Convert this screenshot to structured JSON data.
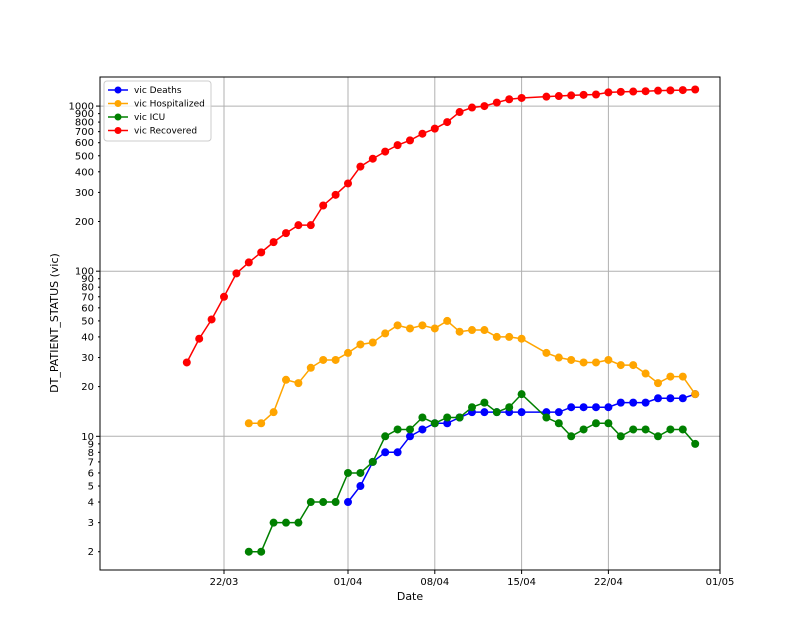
{
  "chart_data": {
    "type": "line",
    "title": "",
    "xlabel": "Date",
    "ylabel": "DT_PATIENT_STATUS (vic)",
    "y_scale": "log",
    "grid": true,
    "legend_position": "top-left",
    "xlim": [
      "2020-03-12",
      "2020-05-01"
    ],
    "ylim": [
      1.55,
      1500
    ],
    "x_ticks": [
      {
        "date": "2020-03-22",
        "label": "22/03"
      },
      {
        "date": "2020-04-01",
        "label": "01/04"
      },
      {
        "date": "2020-04-08",
        "label": "08/04"
      },
      {
        "date": "2020-04-15",
        "label": "15/04"
      },
      {
        "date": "2020-04-22",
        "label": "22/04"
      },
      {
        "date": "2020-05-01",
        "label": "01/05"
      }
    ],
    "y_ticks": [
      {
        "value": 2,
        "label": "2"
      },
      {
        "value": 3,
        "label": "3"
      },
      {
        "value": 4,
        "label": "4"
      },
      {
        "value": 5,
        "label": "5"
      },
      {
        "value": 6,
        "label": "6"
      },
      {
        "value": 7,
        "label": "7"
      },
      {
        "value": 8,
        "label": "8"
      },
      {
        "value": 9,
        "label": "9"
      },
      {
        "value": 10,
        "label": "10"
      },
      {
        "value": 20,
        "label": "20"
      },
      {
        "value": 30,
        "label": "30"
      },
      {
        "value": 40,
        "label": "40"
      },
      {
        "value": 50,
        "label": "50"
      },
      {
        "value": 60,
        "label": "60"
      },
      {
        "value": 70,
        "label": "70"
      },
      {
        "value": 80,
        "label": "80"
      },
      {
        "value": 90,
        "label": "90"
      },
      {
        "value": 100,
        "label": "100"
      },
      {
        "value": 200,
        "label": "200"
      },
      {
        "value": 300,
        "label": "300"
      },
      {
        "value": 400,
        "label": "400"
      },
      {
        "value": 500,
        "label": "500"
      },
      {
        "value": 600,
        "label": "600"
      },
      {
        "value": 700,
        "label": "700"
      },
      {
        "value": 800,
        "label": "800"
      },
      {
        "value": 900,
        "label": "900"
      },
      {
        "value": 1000,
        "label": "1000"
      }
    ],
    "x_gridlines": [
      "2020-03-22",
      "2020-04-01",
      "2020-04-08",
      "2020-04-15",
      "2020-04-22"
    ],
    "y_gridlines": [
      10,
      100,
      1000
    ],
    "series": [
      {
        "name": "vic Deaths",
        "color": "#0000ff",
        "points": [
          [
            "2020-04-01",
            4
          ],
          [
            "2020-04-02",
            5
          ],
          [
            "2020-04-03",
            7
          ],
          [
            "2020-04-04",
            8
          ],
          [
            "2020-04-05",
            8
          ],
          [
            "2020-04-06",
            10
          ],
          [
            "2020-04-07",
            11
          ],
          [
            "2020-04-08",
            12
          ],
          [
            "2020-04-09",
            12
          ],
          [
            "2020-04-10",
            13
          ],
          [
            "2020-04-11",
            14
          ],
          [
            "2020-04-12",
            14
          ],
          [
            "2020-04-13",
            14
          ],
          [
            "2020-04-14",
            14
          ],
          [
            "2020-04-15",
            14
          ],
          [
            "2020-04-17",
            14
          ],
          [
            "2020-04-18",
            14
          ],
          [
            "2020-04-19",
            15
          ],
          [
            "2020-04-20",
            15
          ],
          [
            "2020-04-21",
            15
          ],
          [
            "2020-04-22",
            15
          ],
          [
            "2020-04-23",
            16
          ],
          [
            "2020-04-24",
            16
          ],
          [
            "2020-04-25",
            16
          ],
          [
            "2020-04-26",
            17
          ],
          [
            "2020-04-27",
            17
          ],
          [
            "2020-04-28",
            17
          ],
          [
            "2020-04-29",
            18
          ]
        ]
      },
      {
        "name": "vic Hospitalized",
        "color": "#ffa500",
        "points": [
          [
            "2020-03-24",
            12
          ],
          [
            "2020-03-25",
            12
          ],
          [
            "2020-03-26",
            14
          ],
          [
            "2020-03-27",
            22
          ],
          [
            "2020-03-28",
            21
          ],
          [
            "2020-03-29",
            26
          ],
          [
            "2020-03-30",
            29
          ],
          [
            "2020-03-31",
            29
          ],
          [
            "2020-04-01",
            32
          ],
          [
            "2020-04-02",
            36
          ],
          [
            "2020-04-03",
            37
          ],
          [
            "2020-04-04",
            42
          ],
          [
            "2020-04-05",
            47
          ],
          [
            "2020-04-06",
            45
          ],
          [
            "2020-04-07",
            47
          ],
          [
            "2020-04-08",
            45
          ],
          [
            "2020-04-09",
            50
          ],
          [
            "2020-04-10",
            43
          ],
          [
            "2020-04-11",
            44
          ],
          [
            "2020-04-12",
            44
          ],
          [
            "2020-04-13",
            40
          ],
          [
            "2020-04-14",
            40
          ],
          [
            "2020-04-15",
            39
          ],
          [
            "2020-04-17",
            32
          ],
          [
            "2020-04-18",
            30
          ],
          [
            "2020-04-19",
            29
          ],
          [
            "2020-04-20",
            28
          ],
          [
            "2020-04-21",
            28
          ],
          [
            "2020-04-22",
            29
          ],
          [
            "2020-04-23",
            27
          ],
          [
            "2020-04-24",
            27
          ],
          [
            "2020-04-25",
            24
          ],
          [
            "2020-04-26",
            21
          ],
          [
            "2020-04-27",
            23
          ],
          [
            "2020-04-28",
            23
          ],
          [
            "2020-04-29",
            18
          ]
        ]
      },
      {
        "name": "vic ICU",
        "color": "#008000",
        "points": [
          [
            "2020-03-24",
            2
          ],
          [
            "2020-03-25",
            2
          ],
          [
            "2020-03-26",
            3
          ],
          [
            "2020-03-27",
            3
          ],
          [
            "2020-03-28",
            3
          ],
          [
            "2020-03-29",
            4
          ],
          [
            "2020-03-30",
            4
          ],
          [
            "2020-03-31",
            4
          ],
          [
            "2020-04-01",
            6
          ],
          [
            "2020-04-02",
            6
          ],
          [
            "2020-04-03",
            7
          ],
          [
            "2020-04-04",
            10
          ],
          [
            "2020-04-05",
            11
          ],
          [
            "2020-04-06",
            11
          ],
          [
            "2020-04-07",
            13
          ],
          [
            "2020-04-08",
            12
          ],
          [
            "2020-04-09",
            13
          ],
          [
            "2020-04-10",
            13
          ],
          [
            "2020-04-11",
            15
          ],
          [
            "2020-04-12",
            16
          ],
          [
            "2020-04-13",
            14
          ],
          [
            "2020-04-14",
            15
          ],
          [
            "2020-04-15",
            18
          ],
          [
            "2020-04-17",
            13
          ],
          [
            "2020-04-18",
            12
          ],
          [
            "2020-04-19",
            10
          ],
          [
            "2020-04-20",
            11
          ],
          [
            "2020-04-21",
            12
          ],
          [
            "2020-04-22",
            12
          ],
          [
            "2020-04-23",
            10
          ],
          [
            "2020-04-24",
            11
          ],
          [
            "2020-04-25",
            11
          ],
          [
            "2020-04-26",
            10
          ],
          [
            "2020-04-27",
            11
          ],
          [
            "2020-04-28",
            11
          ],
          [
            "2020-04-29",
            9
          ]
        ]
      },
      {
        "name": "vic Recovered",
        "color": "#ff0000",
        "points": [
          [
            "2020-03-19",
            28
          ],
          [
            "2020-03-20",
            39
          ],
          [
            "2020-03-21",
            51
          ],
          [
            "2020-03-22",
            70
          ],
          [
            "2020-03-23",
            97
          ],
          [
            "2020-03-24",
            113
          ],
          [
            "2020-03-25",
            130
          ],
          [
            "2020-03-26",
            150
          ],
          [
            "2020-03-27",
            170
          ],
          [
            "2020-03-28",
            190
          ],
          [
            "2020-03-29",
            190
          ],
          [
            "2020-03-30",
            250
          ],
          [
            "2020-03-31",
            290
          ],
          [
            "2020-04-01",
            340
          ],
          [
            "2020-04-02",
            430
          ],
          [
            "2020-04-03",
            480
          ],
          [
            "2020-04-04",
            530
          ],
          [
            "2020-04-05",
            580
          ],
          [
            "2020-04-06",
            620
          ],
          [
            "2020-04-07",
            680
          ],
          [
            "2020-04-08",
            730
          ],
          [
            "2020-04-09",
            800
          ],
          [
            "2020-04-10",
            920
          ],
          [
            "2020-04-11",
            980
          ],
          [
            "2020-04-12",
            1000
          ],
          [
            "2020-04-13",
            1050
          ],
          [
            "2020-04-14",
            1100
          ],
          [
            "2020-04-15",
            1120
          ],
          [
            "2020-04-17",
            1140
          ],
          [
            "2020-04-18",
            1150
          ],
          [
            "2020-04-19",
            1160
          ],
          [
            "2020-04-20",
            1170
          ],
          [
            "2020-04-21",
            1175
          ],
          [
            "2020-04-22",
            1210
          ],
          [
            "2020-04-23",
            1220
          ],
          [
            "2020-04-24",
            1225
          ],
          [
            "2020-04-25",
            1230
          ],
          [
            "2020-04-26",
            1240
          ],
          [
            "2020-04-27",
            1245
          ],
          [
            "2020-04-28",
            1250
          ],
          [
            "2020-04-29",
            1260
          ]
        ]
      }
    ]
  }
}
